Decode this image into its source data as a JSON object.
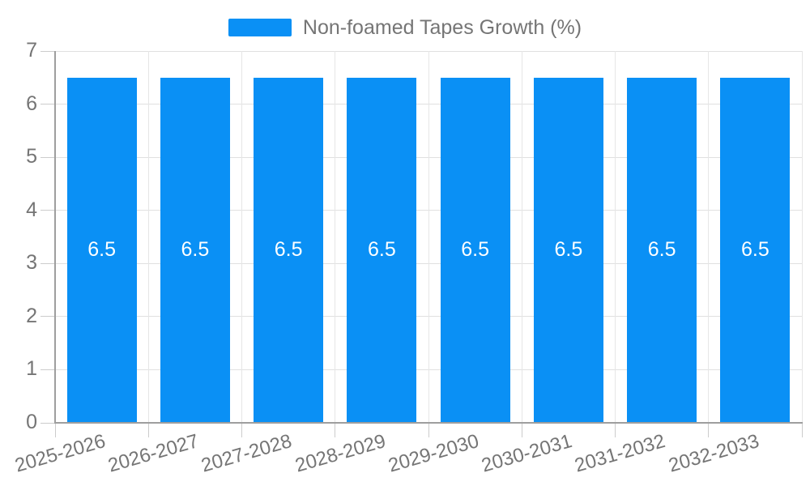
{
  "chart_data": {
    "type": "bar",
    "title": "",
    "legend_position": "top",
    "categories": [
      "2025-2026",
      "2026-2027",
      "2027-2028",
      "2028-2029",
      "2029-2030",
      "2030-2031",
      "2031-2032",
      "2032-2033"
    ],
    "series": [
      {
        "name": "Non-foamed Tapes Growth (%)",
        "values": [
          6.5,
          6.5,
          6.5,
          6.5,
          6.5,
          6.5,
          6.5,
          6.5
        ],
        "value_labels": [
          "6.5",
          "6.5",
          "6.5",
          "6.5",
          "6.5",
          "6.5",
          "6.5",
          "6.5"
        ]
      }
    ],
    "xlabel": "",
    "ylabel": "",
    "ylim": [
      0,
      7
    ],
    "y_ticks": [
      0,
      1,
      2,
      3,
      4,
      5,
      6,
      7
    ],
    "grid": true,
    "colors": {
      "bar": "#0a90f5",
      "axis": "#9e9e9e",
      "grid_h": "#e0e0e0",
      "grid_v": "#e6e6e6",
      "tick": "#cccccc",
      "axis_text": "#757575",
      "value_text": "#ffffff",
      "background": "#ffffff"
    }
  }
}
